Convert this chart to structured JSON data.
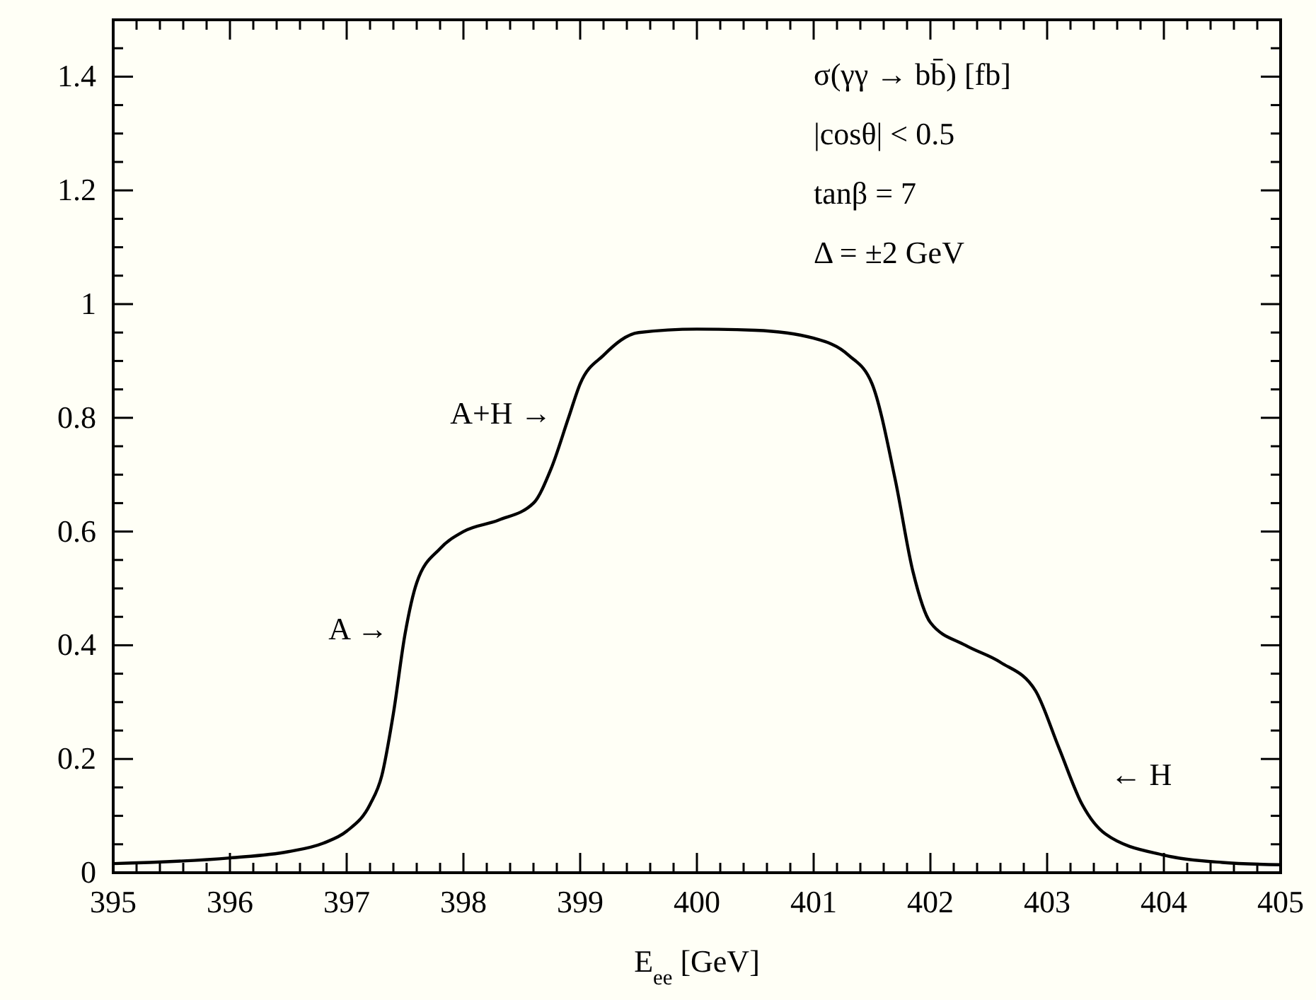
{
  "chart_data": {
    "type": "line",
    "xlabel": "E$_{ee}$ [GeV]",
    "x": [
      395,
      396,
      396.5,
      396.8,
      397,
      397.2,
      397.3,
      397.4,
      397.5,
      397.6,
      397.8,
      398,
      398.3,
      398.6,
      398.75,
      398.9,
      399,
      399.2,
      399.5,
      400,
      400.5,
      401,
      401.3,
      401.5,
      401.7,
      401.85,
      402,
      402.3,
      402.6,
      402.9,
      403.1,
      403.3,
      403.5,
      404,
      404.5,
      405
    ],
    "series": [
      {
        "color": "#000000",
        "values": [
          0.016,
          0.026,
          0.037,
          0.052,
          0.073,
          0.12,
          0.17,
          0.28,
          0.42,
          0.51,
          0.57,
          0.6,
          0.62,
          0.65,
          0.71,
          0.8,
          0.86,
          0.91,
          0.95,
          0.956,
          0.954,
          0.94,
          0.91,
          0.86,
          0.69,
          0.53,
          0.44,
          0.4,
          0.37,
          0.32,
          0.22,
          0.12,
          0.068,
          0.031,
          0.018,
          0.014
        ]
      }
    ],
    "xlim": [
      395,
      405
    ],
    "ylim": [
      0,
      1.5
    ],
    "xticks": [
      395,
      {
        "value": 395.2,
        "label": null
      },
      {
        "value": 395.4,
        "label": null
      },
      {
        "value": 395.6,
        "label": null
      },
      {
        "value": 395.8,
        "label": null
      },
      396,
      {
        "value": 396.2,
        "label": null
      },
      {
        "value": 396.4,
        "label": null
      },
      {
        "value": 396.6,
        "label": null
      },
      {
        "value": 396.8,
        "label": null
      },
      397,
      {
        "value": 397.2,
        "label": null
      },
      {
        "value": 397.4,
        "label": null
      },
      {
        "value": 397.6,
        "label": null
      },
      {
        "value": 397.8,
        "label": null
      },
      398,
      {
        "value": 398.2,
        "label": null
      },
      {
        "value": 398.4,
        "label": null
      },
      {
        "value": 398.6,
        "label": null
      },
      {
        "value": 398.8,
        "label": null
      },
      399,
      {
        "value": 399.2,
        "label": null
      },
      {
        "value": 399.4,
        "label": null
      },
      {
        "value": 399.6,
        "label": null
      },
      {
        "value": 399.8,
        "label": null
      },
      400,
      {
        "value": 400.2,
        "label": null
      },
      {
        "value": 400.4,
        "label": null
      },
      {
        "value": 400.6,
        "label": null
      },
      {
        "value": 400.8,
        "label": null
      },
      401,
      {
        "value": 401.2,
        "label": null
      },
      {
        "value": 401.4,
        "label": null
      },
      {
        "value": 401.6,
        "label": null
      },
      {
        "value": 401.8,
        "label": null
      },
      402,
      {
        "value": 402.2,
        "label": null
      },
      {
        "value": 402.4,
        "label": null
      },
      {
        "value": 402.6,
        "label": null
      },
      {
        "value": 402.8,
        "label": null
      },
      403,
      {
        "value": 403.2,
        "label": null
      },
      {
        "value": 403.4,
        "label": null
      },
      {
        "value": 403.6,
        "label": null
      },
      {
        "value": 403.8,
        "label": null
      },
      404,
      {
        "value": 404.2,
        "label": null
      },
      {
        "value": 404.4,
        "label": null
      },
      {
        "value": 404.6,
        "label": null
      },
      {
        "value": 404.8,
        "label": null
      },
      405
    ],
    "yticks": [
      0,
      {
        "value": 0.05,
        "label": null
      },
      {
        "value": 0.1,
        "label": null
      },
      {
        "value": 0.15,
        "label": null
      },
      0.2,
      {
        "value": 0.25,
        "label": null
      },
      {
        "value": 0.3,
        "label": null
      },
      {
        "value": 0.35,
        "label": null
      },
      0.4,
      {
        "value": 0.45,
        "label": null
      },
      {
        "value": 0.5,
        "label": null
      },
      {
        "value": 0.55,
        "label": null
      },
      0.6,
      {
        "value": 0.65,
        "label": null
      },
      {
        "value": 0.7,
        "label": null
      },
      {
        "value": 0.75,
        "label": null
      },
      0.8,
      {
        "value": 0.85,
        "label": null
      },
      {
        "value": 0.9,
        "label": null
      },
      {
        "value": 0.95,
        "label": null
      },
      1,
      {
        "value": 1.05,
        "label": null
      },
      {
        "value": 1.1,
        "label": null
      },
      {
        "value": 1.15,
        "label": null
      },
      1.2,
      {
        "value": 1.25,
        "label": null
      },
      {
        "value": 1.3,
        "label": null
      },
      {
        "value": 1.35,
        "label": null
      },
      1.4,
      {
        "value": 1.45,
        "label": null
      }
    ],
    "annotations": [
      "σ(γγ → bb̄) [fb]",
      "|cosθ| < 0.5",
      "tanβ = 7",
      "Δ = ±2 GeV",
      {
        "text": "A →",
        "x": 397.5,
        "y": 0.42
      },
      {
        "text": "A+H →",
        "x": 398.9,
        "y": 0.8
      },
      {
        "text": "← H",
        "x": 403.3,
        "y": 0.12
      }
    ]
  }
}
